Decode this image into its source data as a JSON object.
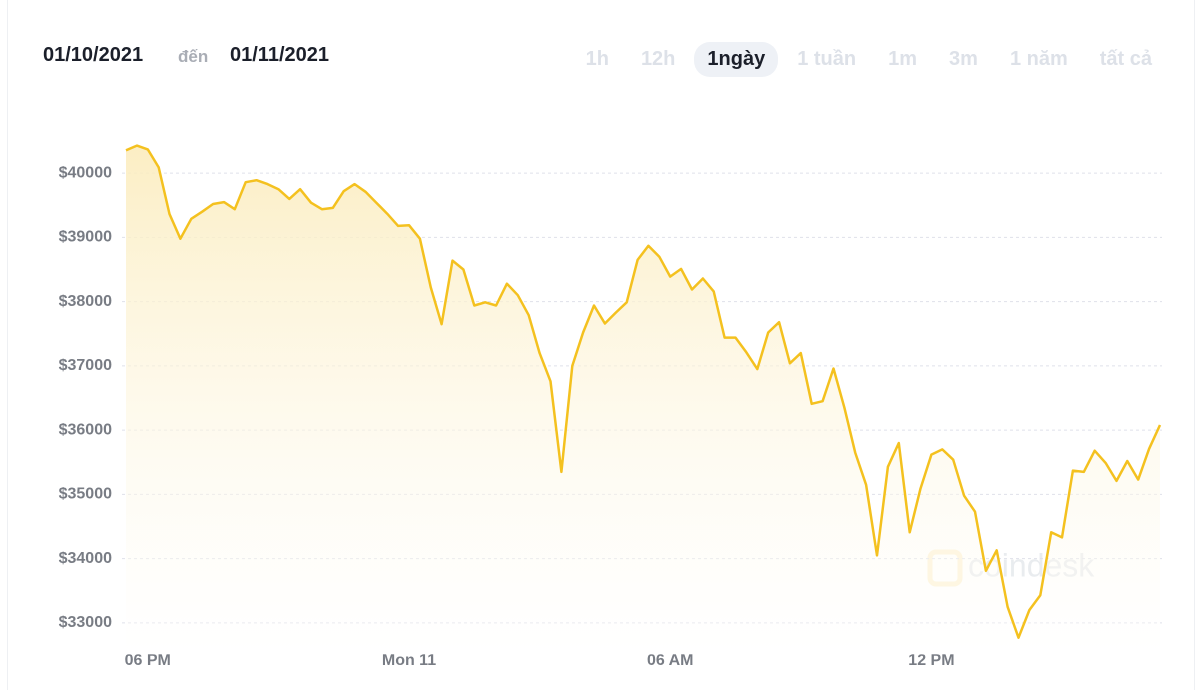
{
  "header": {
    "from": "01/10/2021",
    "separator": "đến",
    "to": "01/11/2021"
  },
  "ranges": [
    {
      "label": "1h",
      "active": false
    },
    {
      "label": "12h",
      "active": false
    },
    {
      "label": "1ngày",
      "active": true
    },
    {
      "label": "1 tuần",
      "active": false
    },
    {
      "label": "1m",
      "active": false
    },
    {
      "label": "3m",
      "active": false
    },
    {
      "label": "1 năm",
      "active": false
    },
    {
      "label": "tất cả",
      "active": false
    }
  ],
  "chart_data": {
    "type": "line",
    "watermark": "coindesk",
    "color": "#f4c11f",
    "grid": true,
    "categories": [
      null,
      null,
      "06 PM",
      null,
      null,
      null,
      null,
      null,
      null,
      null,
      null,
      null,
      null,
      null,
      null,
      null,
      null,
      null,
      null,
      null,
      null,
      null,
      null,
      null,
      null,
      null,
      "Mon 11",
      null,
      null,
      null,
      null,
      null,
      null,
      null,
      null,
      null,
      null,
      null,
      null,
      null,
      null,
      null,
      null,
      null,
      null,
      null,
      null,
      null,
      null,
      null,
      "06 AM",
      null,
      null,
      null,
      null,
      null,
      null,
      null,
      null,
      null,
      null,
      null,
      null,
      null,
      null,
      null,
      null,
      null,
      null,
      null,
      null,
      null,
      null,
      null,
      "12 PM",
      null,
      null,
      null,
      null,
      null,
      null,
      null,
      null,
      null,
      null,
      null,
      null,
      null,
      null,
      null,
      null,
      null,
      null,
      null,
      null,
      null
    ],
    "values": [
      40356,
      40430,
      40370,
      40090,
      39365,
      38980,
      39290,
      39400,
      39520,
      39550,
      39440,
      39860,
      39890,
      39830,
      39750,
      39600,
      39750,
      39540,
      39440,
      39460,
      39720,
      39830,
      39710,
      39540,
      39370,
      39180,
      39190,
      38980,
      38220,
      37650,
      38640,
      38500,
      37940,
      37990,
      37940,
      38280,
      38100,
      37790,
      37200,
      36760,
      35350,
      37000,
      37520,
      37940,
      37660,
      37830,
      37990,
      38650,
      38870,
      38700,
      38390,
      38510,
      38190,
      38360,
      38160,
      37440,
      37440,
      37210,
      36950,
      37520,
      37680,
      37040,
      37200,
      36410,
      36450,
      36960,
      36350,
      35650,
      35150,
      34050,
      35430,
      35800,
      34410,
      35090,
      35620,
      35700,
      35540,
      34980,
      34730,
      33810,
      34130,
      33250,
      32770,
      33200,
      33430,
      34410,
      34330,
      35370,
      35350,
      35680,
      35490,
      35210,
      35520,
      35230,
      35710,
      36080
    ],
    "ylim": [
      32500,
      40750
    ],
    "yticks": [
      {
        "value": 33000,
        "label": "$33000"
      },
      {
        "value": 34000,
        "label": "$34000"
      },
      {
        "value": 35000,
        "label": "$35000"
      },
      {
        "value": 36000,
        "label": "$36000"
      },
      {
        "value": 37000,
        "label": "$37000"
      },
      {
        "value": 38000,
        "label": "$38000"
      },
      {
        "value": 39000,
        "label": "$39000"
      },
      {
        "value": 40000,
        "label": "$40000"
      }
    ]
  }
}
